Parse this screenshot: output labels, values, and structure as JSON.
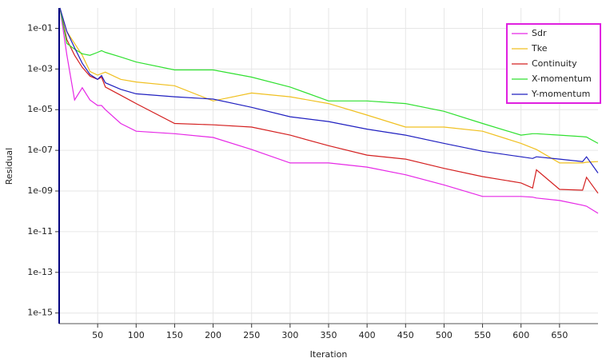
{
  "chart_data": {
    "type": "line",
    "x_label": "Iteration",
    "y_label": "Residual",
    "x": [
      1,
      10,
      20,
      30,
      40,
      50,
      55,
      60,
      80,
      100,
      150,
      200,
      250,
      300,
      350,
      400,
      450,
      500,
      550,
      600,
      615,
      620,
      650,
      680,
      685,
      700
    ],
    "series": [
      {
        "name": "Sdr",
        "color": "#e628e6",
        "values": [
          1,
          0.005,
          3e-05,
          0.00012,
          3e-05,
          1.6e-05,
          1.6e-05,
          1e-05,
          2.1e-06,
          8.7e-07,
          6.6e-07,
          4.3e-07,
          1.1e-07,
          2.4e-08,
          2.4e-08,
          1.5e-08,
          6.3e-09,
          2e-09,
          5.4e-10,
          5.4e-10,
          5e-10,
          4.5e-10,
          3.4e-10,
          2e-10,
          1.8e-10,
          8e-11
        ]
      },
      {
        "name": "Tke",
        "color": "#f0c020",
        "values": [
          1,
          0.07,
          0.018,
          0.0047,
          0.00076,
          0.0005,
          0.0006,
          0.0007,
          0.00031,
          0.00023,
          0.00015,
          2.7e-05,
          6.6e-05,
          4.3e-05,
          2e-05,
          5.4e-06,
          1.4e-06,
          1.4e-06,
          8.7e-07,
          2.2e-07,
          1.3e-07,
          1.1e-07,
          2.4e-08,
          2.4e-08,
          2.6e-08,
          2.8e-08
        ]
      },
      {
        "name": "Continuity",
        "color": "#d42020",
        "values": [
          1,
          0.028,
          0.0047,
          0.0012,
          0.00045,
          0.00031,
          0.0004,
          0.00013,
          5.1e-05,
          2e-05,
          2.1e-06,
          1.8e-06,
          1.4e-06,
          5.6e-07,
          1.7e-07,
          5.8e-08,
          3.7e-08,
          1.3e-08,
          5.1e-09,
          2.5e-09,
          1.4e-09,
          1.1e-08,
          1.2e-09,
          1.1e-09,
          4.7e-09,
          7.8e-10
        ]
      },
      {
        "name": "X-momentum",
        "color": "#30e030",
        "values": [
          1,
          0.018,
          0.0095,
          0.0056,
          0.0047,
          0.0066,
          0.008,
          0.0066,
          0.0039,
          0.0022,
          0.0009,
          0.0009,
          0.0004,
          0.00013,
          2.7e-05,
          2.7e-05,
          2e-05,
          8.3e-06,
          2.1e-06,
          5.6e-07,
          6.6e-07,
          6.6e-07,
          5.6e-07,
          4.7e-07,
          4.5e-07,
          2.2e-07
        ]
      },
      {
        "name": "Y-momentum",
        "color": "#2020c0",
        "values": [
          1,
          0.07,
          0.011,
          0.0019,
          0.00054,
          0.00031,
          0.00048,
          0.00021,
          0.0001,
          6e-05,
          4.3e-05,
          3.3e-05,
          1.3e-05,
          4.5e-06,
          2.6e-06,
          1.1e-06,
          5.6e-07,
          2.2e-07,
          9e-08,
          4.8e-08,
          4e-08,
          4.8e-08,
          3.7e-08,
          2.8e-08,
          4.8e-08,
          7.7e-09
        ]
      }
    ],
    "xlim": [
      0,
      700
    ],
    "xticks": [
      50,
      100,
      150,
      200,
      250,
      300,
      350,
      400,
      450,
      500,
      550,
      600,
      650
    ],
    "ylim": [
      3e-16,
      1
    ],
    "log_y": true,
    "yticks": [
      {
        "value": 0.1,
        "label": "1e-01"
      },
      {
        "value": 0.001,
        "label": "1e-03"
      },
      {
        "value": 1e-05,
        "label": "1e-05"
      },
      {
        "value": 1e-07,
        "label": "1e-07"
      },
      {
        "value": 1e-09,
        "label": "1e-09"
      },
      {
        "value": 1e-11,
        "label": "1e-11"
      },
      {
        "value": 1e-13,
        "label": "1e-13"
      },
      {
        "value": 1e-15,
        "label": "1e-15"
      }
    ],
    "grid": true,
    "legend": "top-right",
    "legend_border_color": "#e020e0"
  }
}
